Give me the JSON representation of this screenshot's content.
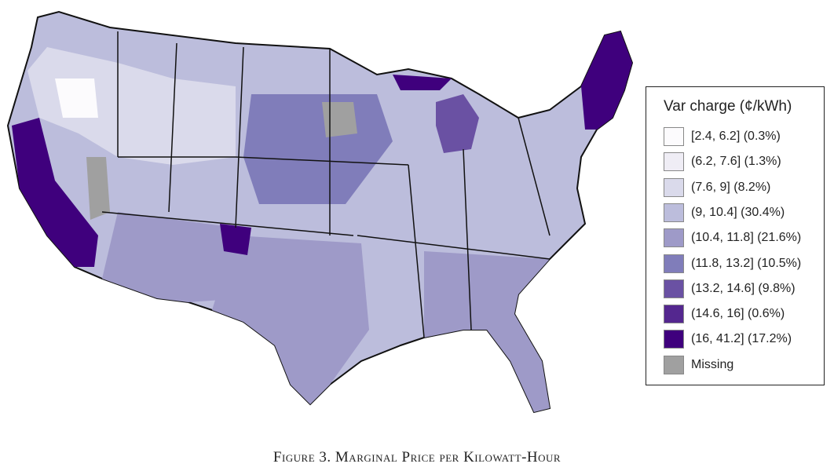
{
  "legend": {
    "title": "Var charge (¢/kWh)",
    "items": [
      {
        "label": "[2.4, 6.2] (0.3%)",
        "color": "#fcfbfd"
      },
      {
        "label": "(6.2, 7.6] (1.3%)",
        "color": "#efedf5"
      },
      {
        "label": "(7.6, 9] (8.2%)",
        "color": "#dadaeb"
      },
      {
        "label": "(9, 10.4] (30.4%)",
        "color": "#bcbddc"
      },
      {
        "label": "(10.4, 11.8] (21.6%)",
        "color": "#9e9ac8"
      },
      {
        "label": "(11.8, 13.2] (10.5%)",
        "color": "#807dba"
      },
      {
        "label": "(13.2, 14.6] (9.8%)",
        "color": "#6a51a3"
      },
      {
        "label": "(14.6, 16] (0.6%)",
        "color": "#54278f"
      },
      {
        "label": "(16, 41.2] (17.2%)",
        "color": "#3f007d"
      },
      {
        "label": "Missing",
        "color": "#a0a0a0"
      }
    ]
  },
  "caption": "Figure 3. Marginal Price per Kilowatt-Hour"
}
